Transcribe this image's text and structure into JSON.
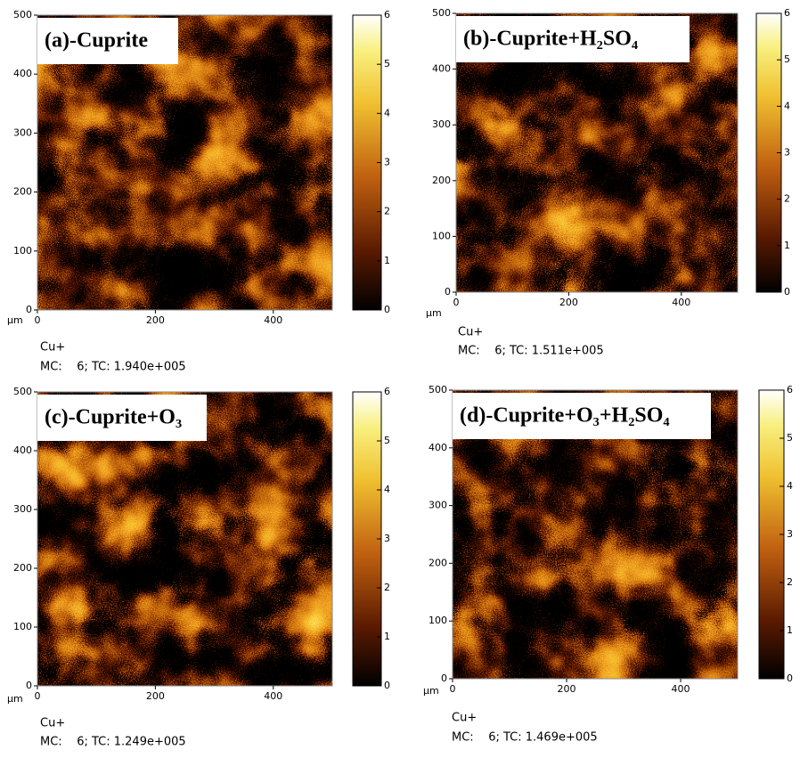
{
  "chart_data": [
    {
      "type": "heatmap",
      "title": "(a)-Cuprite",
      "xlabel": "µm",
      "species": "Cu+",
      "info": "MC:    6; TC: 1.940e+005",
      "xlim": [
        0,
        500
      ],
      "xticks": [
        0,
        200,
        400
      ],
      "ylim": [
        0,
        500
      ],
      "yticks": [
        0,
        100,
        200,
        300,
        400,
        500
      ],
      "colorbar_lim": [
        0,
        6
      ],
      "colorbar_ticks": [
        0,
        1,
        2,
        3,
        4,
        5,
        6
      ]
    },
    {
      "type": "heatmap",
      "title": "(b)-Cuprite+H₂SO₄",
      "xlabel": "µm",
      "species": "Cu+",
      "info": "MC:    6; TC: 1.511e+005",
      "xlim": [
        0,
        500
      ],
      "xticks": [
        0,
        200,
        400
      ],
      "ylim": [
        0,
        500
      ],
      "yticks": [
        0,
        100,
        200,
        300,
        400,
        500
      ],
      "colorbar_lim": [
        0,
        6
      ],
      "colorbar_ticks": [
        0,
        1,
        2,
        3,
        4,
        5,
        6
      ]
    },
    {
      "type": "heatmap",
      "title": "(c)-Cuprite+O₃",
      "xlabel": "µm",
      "species": "Cu+",
      "info": "MC:    6; TC: 1.249e+005",
      "xlim": [
        0,
        500
      ],
      "xticks": [
        0,
        200,
        400
      ],
      "ylim": [
        0,
        500
      ],
      "yticks": [
        0,
        100,
        200,
        300,
        400,
        500
      ],
      "colorbar_lim": [
        0,
        6
      ],
      "colorbar_ticks": [
        0,
        1,
        2,
        3,
        4,
        5,
        6
      ]
    },
    {
      "type": "heatmap",
      "title": "(d)-Cuprite+O₃+H₂SO₄",
      "xlabel": "µm",
      "species": "Cu+",
      "info": "MC:    6; TC: 1.469e+005",
      "xlim": [
        0,
        500
      ],
      "xticks": [
        0,
        200,
        400
      ],
      "ylim": [
        0,
        500
      ],
      "yticks": [
        0,
        100,
        200,
        300,
        400,
        500
      ],
      "colorbar_lim": [
        0,
        6
      ],
      "colorbar_ticks": [
        0,
        1,
        2,
        3,
        4,
        5,
        6
      ]
    }
  ]
}
